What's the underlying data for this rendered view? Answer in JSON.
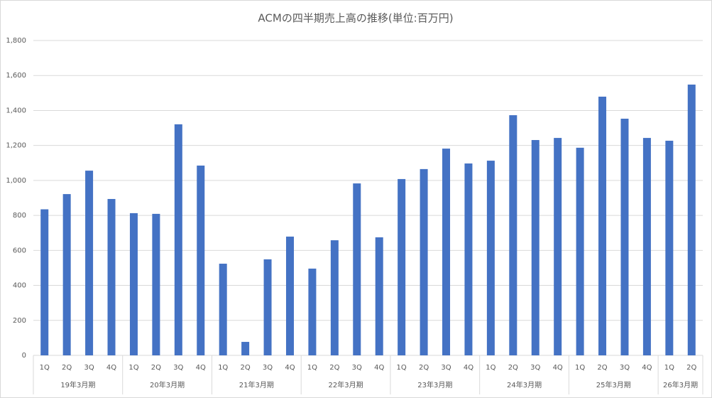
{
  "chart_data": {
    "type": "bar",
    "title": "ACMの四半期売上高の推移(単位:百万円)",
    "color": "#4472c4",
    "grid": true,
    "ylim": [
      0,
      1800
    ],
    "yticks": [
      0,
      200,
      400,
      600,
      800,
      {
        "value": 1000,
        "label": "1,000"
      },
      {
        "value": 1200,
        "label": "1,200"
      },
      {
        "value": 1400,
        "label": "1,400"
      },
      {
        "value": 1600,
        "label": "1,600"
      },
      {
        "value": 1800,
        "label": "1,800"
      }
    ],
    "groups": [
      {
        "name": "19年3月期",
        "categories": [
          "1Q",
          "2Q",
          "3Q",
          "4Q"
        ],
        "values": [
          835,
          922,
          1056,
          894
        ]
      },
      {
        "name": "20年3月期",
        "categories": [
          "1Q",
          "2Q",
          "3Q",
          "4Q"
        ],
        "values": [
          813,
          809,
          1321,
          1085
        ]
      },
      {
        "name": "21年3月期",
        "categories": [
          "1Q",
          "2Q",
          "3Q",
          "4Q"
        ],
        "values": [
          524,
          77,
          549,
          679
        ]
      },
      {
        "name": "22年3月期",
        "categories": [
          "1Q",
          "2Q",
          "3Q",
          "4Q"
        ],
        "values": [
          496,
          658,
          983,
          675
        ]
      },
      {
        "name": "23年3月期",
        "categories": [
          "1Q",
          "2Q",
          "3Q",
          "4Q"
        ],
        "values": [
          1008,
          1065,
          1182,
          1097
        ]
      },
      {
        "name": "24年3月期",
        "categories": [
          "1Q",
          "2Q",
          "3Q",
          "4Q"
        ],
        "values": [
          1113,
          1373,
          1231,
          1243
        ]
      },
      {
        "name": "25年3月期",
        "categories": [
          "1Q",
          "2Q",
          "3Q",
          "4Q"
        ],
        "values": [
          1187,
          1479,
          1353,
          1243
        ]
      },
      {
        "name": "26年3月期",
        "categories": [
          "1Q",
          "2Q"
        ],
        "values": [
          1227,
          1548
        ]
      }
    ]
  }
}
